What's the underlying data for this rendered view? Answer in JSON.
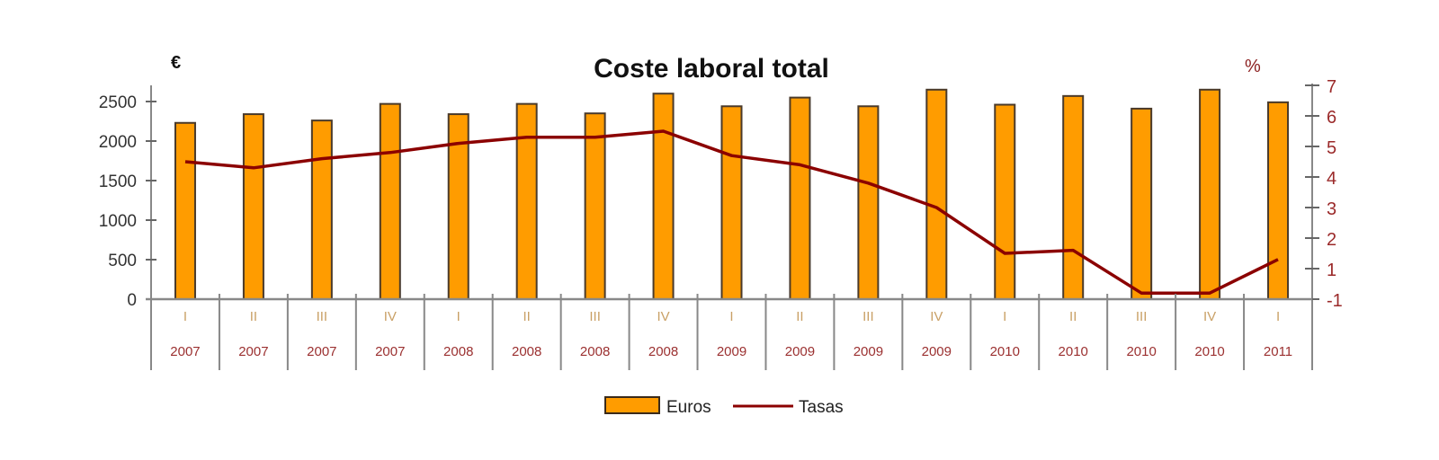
{
  "chart_data": {
    "type": "bar",
    "title": "Coste laboral total",
    "xlabel": "",
    "ylabel": "€",
    "y2label": "%",
    "ylim": [
      0,
      2500
    ],
    "y2lim": [
      0,
      7
    ],
    "yticks": [
      0,
      500,
      1000,
      1500,
      2000,
      2500
    ],
    "y2ticks_labels": [
      "7",
      "6",
      "5",
      "4",
      "3",
      "2",
      "1",
      "-1"
    ],
    "grid": false,
    "legend_position": "bottom",
    "categories": [
      {
        "quarter": "I",
        "year": "2007"
      },
      {
        "quarter": "II",
        "year": "2007"
      },
      {
        "quarter": "III",
        "year": "2007"
      },
      {
        "quarter": "IV",
        "year": "2007"
      },
      {
        "quarter": "I",
        "year": "2008"
      },
      {
        "quarter": "II",
        "year": "2008"
      },
      {
        "quarter": "III",
        "year": "2008"
      },
      {
        "quarter": "IV",
        "year": "2008"
      },
      {
        "quarter": "I",
        "year": "2009"
      },
      {
        "quarter": "II",
        "year": "2009"
      },
      {
        "quarter": "III",
        "year": "2009"
      },
      {
        "quarter": "IV",
        "year": "2009"
      },
      {
        "quarter": "I",
        "year": "2010"
      },
      {
        "quarter": "II",
        "year": "2010"
      },
      {
        "quarter": "III",
        "year": "2010"
      },
      {
        "quarter": "IV",
        "year": "2010"
      },
      {
        "quarter": "I",
        "year": "2011"
      }
    ],
    "series": [
      {
        "name": "Euros",
        "type": "bar",
        "axis": "left",
        "color": "#ff9c00",
        "values": [
          2230,
          2340,
          2260,
          2470,
          2340,
          2470,
          2350,
          2600,
          2440,
          2550,
          2440,
          2650,
          2460,
          2570,
          2410,
          2650,
          2490
        ]
      },
      {
        "name": "Tasas",
        "type": "line",
        "axis": "right",
        "color": "#8b0000",
        "values": [
          4.5,
          4.3,
          4.6,
          4.8,
          5.1,
          5.3,
          5.3,
          5.5,
          4.7,
          4.4,
          3.8,
          3.0,
          1.5,
          1.6,
          0.2,
          0.2,
          1.3
        ]
      }
    ]
  },
  "legend": {
    "items": [
      {
        "label": "Euros",
        "color": "#ff9c00"
      },
      {
        "label": "Tasas",
        "color": "#8b0000"
      }
    ]
  },
  "colors": {
    "bar_fill": "#ff9c00",
    "bar_stroke": "#4a3a2a",
    "line": "#8b0000",
    "axis": "#888888",
    "year_label": "#9b3030",
    "quarter_label": "#c9a066",
    "right_tick_label": "#9b2a2a"
  }
}
